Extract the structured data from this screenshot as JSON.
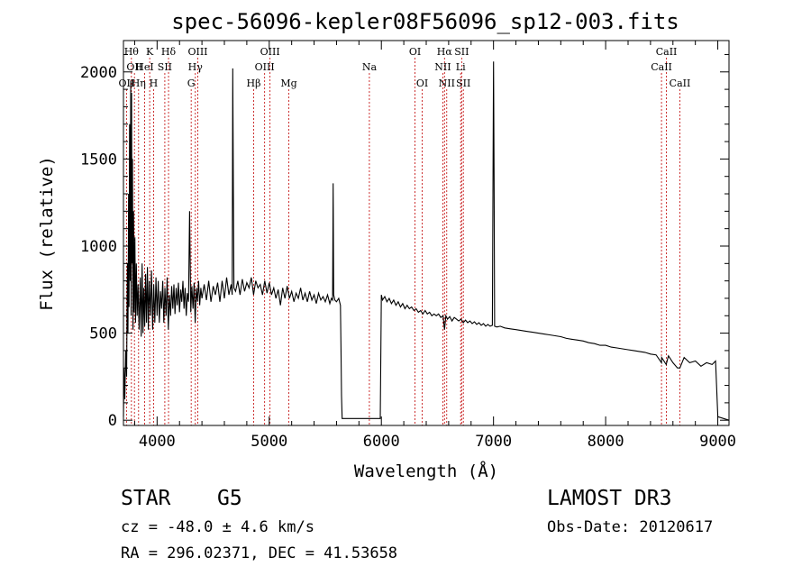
{
  "chart_data": {
    "type": "line",
    "title": "spec-56096-kepler08F56096_sp12-003.fits",
    "xlabel": "Wavelength (Å)",
    "ylabel": "Flux (relative)",
    "xlim": [
      3700,
      9100
    ],
    "ylim": [
      -30,
      2180
    ],
    "x_ticks": [
      4000,
      5000,
      6000,
      7000,
      8000,
      9000
    ],
    "y_ticks": [
      0,
      500,
      1000,
      1500,
      2000
    ],
    "line_color": "#000000",
    "marker_color": "#c00000",
    "series": [
      {
        "name": "flux",
        "points": [
          [
            3700,
            20
          ],
          [
            3705,
            300
          ],
          [
            3712,
            120
          ],
          [
            3720,
            400
          ],
          [
            3728,
            250
          ],
          [
            3735,
            900
          ],
          [
            3740,
            500
          ],
          [
            3746,
            1300
          ],
          [
            3750,
            650
          ],
          [
            3755,
            1700
          ],
          [
            3760,
            800
          ],
          [
            3765,
            1950
          ],
          [
            3768,
            600
          ],
          [
            3772,
            1880
          ],
          [
            3776,
            900
          ],
          [
            3780,
            1500
          ],
          [
            3785,
            520
          ],
          [
            3790,
            1200
          ],
          [
            3796,
            620
          ],
          [
            3802,
            1050
          ],
          [
            3808,
            560
          ],
          [
            3815,
            900
          ],
          [
            3822,
            600
          ],
          [
            3830,
            780
          ],
          [
            3840,
            520
          ],
          [
            3850,
            820
          ],
          [
            3858,
            480
          ],
          [
            3866,
            900
          ],
          [
            3874,
            500
          ],
          [
            3882,
            760
          ],
          [
            3890,
            540
          ],
          [
            3898,
            840
          ],
          [
            3906,
            560
          ],
          [
            3914,
            880
          ],
          [
            3922,
            520
          ],
          [
            3930,
            800
          ],
          [
            3940,
            600
          ],
          [
            3950,
            860
          ],
          [
            3960,
            520
          ],
          [
            3970,
            780
          ],
          [
            3980,
            560
          ],
          [
            3990,
            820
          ],
          [
            4000,
            600
          ],
          [
            4010,
            800
          ],
          [
            4020,
            560
          ],
          [
            4030,
            740
          ],
          [
            4040,
            640
          ],
          [
            4050,
            800
          ],
          [
            4060,
            560
          ],
          [
            4070,
            760
          ],
          [
            4080,
            600
          ],
          [
            4090,
            820
          ],
          [
            4100,
            520
          ],
          [
            4110,
            720
          ],
          [
            4120,
            600
          ],
          [
            4130,
            770
          ],
          [
            4140,
            640
          ],
          [
            4150,
            780
          ],
          [
            4160,
            610
          ],
          [
            4170,
            760
          ],
          [
            4180,
            660
          ],
          [
            4190,
            790
          ],
          [
            4200,
            620
          ],
          [
            4210,
            750
          ],
          [
            4220,
            680
          ],
          [
            4230,
            800
          ],
          [
            4240,
            640
          ],
          [
            4250,
            760
          ],
          [
            4260,
            600
          ],
          [
            4270,
            730
          ],
          [
            4280,
            680
          ],
          [
            4290,
            1200
          ],
          [
            4300,
            620
          ],
          [
            4310,
            770
          ],
          [
            4320,
            640
          ],
          [
            4330,
            790
          ],
          [
            4340,
            560
          ],
          [
            4350,
            760
          ],
          [
            4360,
            680
          ],
          [
            4370,
            800
          ],
          [
            4380,
            660
          ],
          [
            4390,
            760
          ],
          [
            4400,
            700
          ],
          [
            4420,
            780
          ],
          [
            4440,
            690
          ],
          [
            4460,
            800
          ],
          [
            4480,
            680
          ],
          [
            4500,
            770
          ],
          [
            4520,
            720
          ],
          [
            4540,
            790
          ],
          [
            4560,
            680
          ],
          [
            4580,
            800
          ],
          [
            4600,
            700
          ],
          [
            4620,
            820
          ],
          [
            4640,
            720
          ],
          [
            4660,
            780
          ],
          [
            4670,
            720
          ],
          [
            4675,
            2020
          ],
          [
            4680,
            1300
          ],
          [
            4685,
            760
          ],
          [
            4700,
            740
          ],
          [
            4720,
            800
          ],
          [
            4740,
            720
          ],
          [
            4760,
            810
          ],
          [
            4780,
            740
          ],
          [
            4800,
            790
          ],
          [
            4820,
            760
          ],
          [
            4840,
            820
          ],
          [
            4860,
            720
          ],
          [
            4880,
            800
          ],
          [
            4900,
            760
          ],
          [
            4920,
            780
          ],
          [
            4940,
            720
          ],
          [
            4960,
            800
          ],
          [
            4980,
            730
          ],
          [
            5000,
            790
          ],
          [
            5020,
            720
          ],
          [
            5040,
            760
          ],
          [
            5060,
            700
          ],
          [
            5080,
            750
          ],
          [
            5100,
            660
          ],
          [
            5120,
            760
          ],
          [
            5140,
            700
          ],
          [
            5160,
            770
          ],
          [
            5180,
            700
          ],
          [
            5200,
            740
          ],
          [
            5220,
            680
          ],
          [
            5240,
            730
          ],
          [
            5260,
            700
          ],
          [
            5280,
            760
          ],
          [
            5300,
            690
          ],
          [
            5320,
            730
          ],
          [
            5340,
            680
          ],
          [
            5360,
            740
          ],
          [
            5380,
            690
          ],
          [
            5400,
            720
          ],
          [
            5420,
            670
          ],
          [
            5440,
            730
          ],
          [
            5460,
            690
          ],
          [
            5480,
            710
          ],
          [
            5500,
            680
          ],
          [
            5520,
            720
          ],
          [
            5540,
            670
          ],
          [
            5555,
            700
          ],
          [
            5565,
            690
          ],
          [
            5570,
            1360
          ],
          [
            5575,
            720
          ],
          [
            5585,
            690
          ],
          [
            5600,
            680
          ],
          [
            5620,
            700
          ],
          [
            5635,
            660
          ],
          [
            5640,
            420
          ],
          [
            5645,
            140
          ],
          [
            5650,
            10
          ],
          [
            5700,
            10
          ],
          [
            5800,
            10
          ],
          [
            5900,
            10
          ],
          [
            5950,
            10
          ],
          [
            5990,
            10
          ],
          [
            6000,
            720
          ],
          [
            6010,
            690
          ],
          [
            6030,
            710
          ],
          [
            6050,
            680
          ],
          [
            6070,
            700
          ],
          [
            6090,
            670
          ],
          [
            6110,
            690
          ],
          [
            6130,
            660
          ],
          [
            6150,
            680
          ],
          [
            6170,
            650
          ],
          [
            6190,
            670
          ],
          [
            6210,
            640
          ],
          [
            6230,
            660
          ],
          [
            6250,
            640
          ],
          [
            6270,
            650
          ],
          [
            6290,
            630
          ],
          [
            6310,
            640
          ],
          [
            6330,
            620
          ],
          [
            6350,
            630
          ],
          [
            6370,
            610
          ],
          [
            6390,
            630
          ],
          [
            6410,
            610
          ],
          [
            6430,
            620
          ],
          [
            6450,
            600
          ],
          [
            6470,
            610
          ],
          [
            6490,
            600
          ],
          [
            6510,
            610
          ],
          [
            6530,
            590
          ],
          [
            6550,
            600
          ],
          [
            6563,
            520
          ],
          [
            6575,
            600
          ],
          [
            6590,
            580
          ],
          [
            6610,
            595
          ],
          [
            6630,
            570
          ],
          [
            6650,
            590
          ],
          [
            6670,
            580
          ],
          [
            6690,
            570
          ],
          [
            6710,
            580
          ],
          [
            6730,
            560
          ],
          [
            6750,
            575
          ],
          [
            6770,
            560
          ],
          [
            6790,
            570
          ],
          [
            6810,
            555
          ],
          [
            6830,
            565
          ],
          [
            6850,
            550
          ],
          [
            6870,
            560
          ],
          [
            6890,
            545
          ],
          [
            6910,
            555
          ],
          [
            6930,
            540
          ],
          [
            6950,
            550
          ],
          [
            6970,
            540
          ],
          [
            6990,
            545
          ],
          [
            6995,
            1250
          ],
          [
            7000,
            2060
          ],
          [
            7005,
            1400
          ],
          [
            7010,
            540
          ],
          [
            7030,
            535
          ],
          [
            7060,
            540
          ],
          [
            7100,
            530
          ],
          [
            7150,
            525
          ],
          [
            7200,
            520
          ],
          [
            7250,
            515
          ],
          [
            7300,
            510
          ],
          [
            7350,
            505
          ],
          [
            7400,
            500
          ],
          [
            7450,
            495
          ],
          [
            7500,
            490
          ],
          [
            7550,
            485
          ],
          [
            7600,
            480
          ],
          [
            7650,
            470
          ],
          [
            7700,
            465
          ],
          [
            7750,
            460
          ],
          [
            7800,
            455
          ],
          [
            7850,
            445
          ],
          [
            7900,
            440
          ],
          [
            7950,
            430
          ],
          [
            8000,
            430
          ],
          [
            8050,
            420
          ],
          [
            8100,
            415
          ],
          [
            8150,
            410
          ],
          [
            8200,
            405
          ],
          [
            8250,
            400
          ],
          [
            8300,
            395
          ],
          [
            8350,
            390
          ],
          [
            8400,
            380
          ],
          [
            8450,
            375
          ],
          [
            8498,
            330
          ],
          [
            8500,
            360
          ],
          [
            8540,
            320
          ],
          [
            8560,
            370
          ],
          [
            8600,
            330
          ],
          [
            8640,
            300
          ],
          [
            8662,
            300
          ],
          [
            8700,
            360
          ],
          [
            8750,
            330
          ],
          [
            8800,
            340
          ],
          [
            8850,
            310
          ],
          [
            8900,
            330
          ],
          [
            8950,
            320
          ],
          [
            8980,
            340
          ],
          [
            9000,
            20
          ],
          [
            9100,
            0
          ]
        ]
      }
    ],
    "line_markers": [
      {
        "wl": 3771,
        "label": "Hθ",
        "row": 0
      },
      {
        "wl": 3798,
        "label": "OII",
        "row": 1
      },
      {
        "wl": 3727,
        "label": "OII",
        "row": 2
      },
      {
        "wl": 3835,
        "label": "Hη",
        "row": 2
      },
      {
        "wl": 3889,
        "label": "HeI",
        "row": 1
      },
      {
        "wl": 3934,
        "label": "K",
        "row": 0
      },
      {
        "wl": 3969,
        "label": "H",
        "row": 2
      },
      {
        "wl": 4069,
        "label": "SII",
        "row": 1
      },
      {
        "wl": 4102,
        "label": "Hδ",
        "row": 0
      },
      {
        "wl": 4304,
        "label": "G",
        "row": 2
      },
      {
        "wl": 4341,
        "label": "Hγ",
        "row": 1
      },
      {
        "wl": 4363,
        "label": "OIII",
        "row": 0
      },
      {
        "wl": 4861,
        "label": "Hβ",
        "row": 2
      },
      {
        "wl": 4959,
        "label": "OIII",
        "row": 1
      },
      {
        "wl": 5007,
        "label": "OIII",
        "row": 0
      },
      {
        "wl": 5175,
        "label": "Mg",
        "row": 2
      },
      {
        "wl": 5893,
        "label": "Na",
        "row": 1
      },
      {
        "wl": 6300,
        "label": "OI",
        "row": 0
      },
      {
        "wl": 6364,
        "label": "OI",
        "row": 2
      },
      {
        "wl": 6548,
        "label": "NII",
        "row": 1
      },
      {
        "wl": 6563,
        "label": "Hα",
        "row": 0
      },
      {
        "wl": 6583,
        "label": "NII",
        "row": 2
      },
      {
        "wl": 6707,
        "label": "Li",
        "row": 1
      },
      {
        "wl": 6716,
        "label": "SII",
        "row": 0
      },
      {
        "wl": 6731,
        "label": "SII",
        "row": 2
      },
      {
        "wl": 8498,
        "label": "CaII",
        "row": 1
      },
      {
        "wl": 8542,
        "label": "CaII",
        "row": 0
      },
      {
        "wl": 8662,
        "label": "CaII",
        "row": 2
      }
    ]
  },
  "info": {
    "class_label": "STAR",
    "subclass": "G5",
    "survey": "LAMOST DR3",
    "cz": "cz = -48.0 ± 4.6 km/s",
    "obs_date": "Obs-Date: 20120617",
    "coords": "RA = 296.02371, DEC =  41.53658"
  }
}
